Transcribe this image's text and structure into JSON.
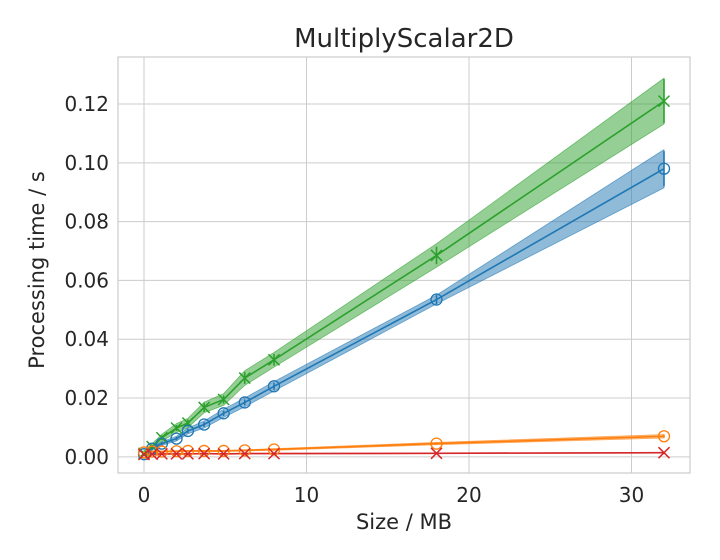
{
  "chart_data": {
    "type": "line",
    "title": "MultiplyScalar2D",
    "xlabel": "Size / MB",
    "ylabel": "Processing time / s",
    "xlim": [
      -1.6,
      33.6
    ],
    "ylim": [
      -0.0055,
      0.136
    ],
    "xticks": [
      0,
      10,
      20,
      30
    ],
    "xtick_labels": [
      "0",
      "10",
      "20",
      "30"
    ],
    "yticks": [
      0.0,
      0.02,
      0.04,
      0.06,
      0.08,
      0.1,
      0.12
    ],
    "ytick_labels": [
      "0.00",
      "0.02",
      "0.04",
      "0.06",
      "0.08",
      "0.10",
      "0.12"
    ],
    "grid": true,
    "x": [
      0.0,
      0.5,
      1.1,
      2.0,
      2.7,
      3.7,
      4.9,
      6.2,
      8.0,
      18.0,
      32.0
    ],
    "series": [
      {
        "color": "#2ca02c",
        "marker": "x",
        "values": [
          0.0012,
          0.0035,
          0.0065,
          0.0098,
          0.0115,
          0.0168,
          0.0195,
          0.0268,
          0.033,
          0.0685,
          0.121
        ],
        "errors": [
          0.0004,
          0.0006,
          0.0008,
          0.001,
          0.0012,
          0.0016,
          0.0014,
          0.002,
          0.002,
          0.003,
          0.0075
        ],
        "band": [
          0.0008,
          0.001,
          0.0012,
          0.0015,
          0.0016,
          0.0018,
          0.002,
          0.0025,
          0.0025,
          0.004,
          0.0078
        ]
      },
      {
        "color": "#1f77b4",
        "marker": "o",
        "values": [
          0.0009,
          0.0028,
          0.0045,
          0.0062,
          0.0088,
          0.011,
          0.0148,
          0.0185,
          0.024,
          0.0535,
          0.098
        ],
        "errors": [
          0.0003,
          0.0004,
          0.0005,
          0.0006,
          0.0007,
          0.0008,
          0.0009,
          0.001,
          0.0012,
          0.0015,
          0.006
        ],
        "band": [
          0.0004,
          0.0005,
          0.0006,
          0.0008,
          0.001,
          0.0012,
          0.0014,
          0.0015,
          0.0016,
          0.0015,
          0.0065
        ]
      },
      {
        "color": "#ff7f0e",
        "marker": "o",
        "values": [
          0.0015,
          0.0018,
          0.0018,
          0.0019,
          0.002,
          0.002,
          0.002,
          0.0022,
          0.0025,
          0.0045,
          0.007
        ],
        "errors": [
          0.0002,
          0.0002,
          0.0002,
          0.0002,
          0.0002,
          0.0002,
          0.0002,
          0.0002,
          0.0003,
          0.0004,
          0.0005
        ],
        "band": [
          0.0002,
          0.0002,
          0.0002,
          0.0002,
          0.0002,
          0.0002,
          0.0002,
          0.0002,
          0.0003,
          0.0004,
          0.0006
        ]
      },
      {
        "color": "#d62728",
        "marker": "x",
        "values": [
          0.0008,
          0.0009,
          0.001,
          0.001,
          0.001,
          0.0011,
          0.001,
          0.0011,
          0.0011,
          0.0012,
          0.0014
        ],
        "errors": [
          0.0001,
          0.0001,
          0.0001,
          0.0001,
          0.0001,
          0.0001,
          0.0001,
          0.0001,
          0.0001,
          0.0001,
          0.0001
        ],
        "band": [
          0.0001,
          0.0001,
          0.0001,
          0.0001,
          0.0001,
          0.0001,
          0.0001,
          0.0001,
          0.0001,
          0.0001,
          0.0001
        ]
      }
    ]
  }
}
